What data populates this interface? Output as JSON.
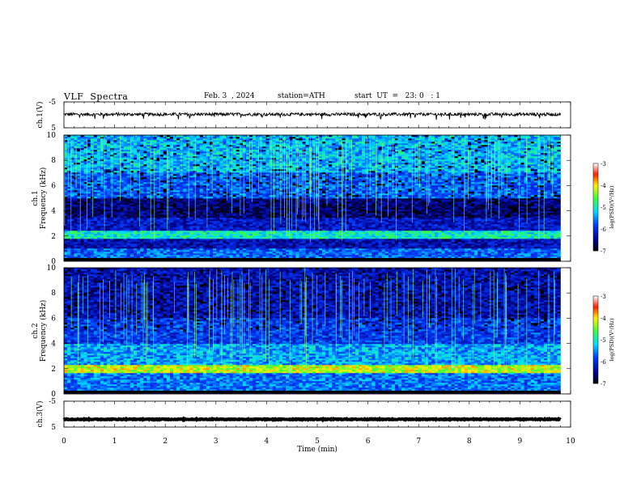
{
  "header": {
    "title": "VLF  Spectra",
    "date": "Feb. 3  , 2024",
    "station": "station=ATH",
    "start": "start  UT  =   23: 0   : 1"
  },
  "chart_data": [
    {
      "type": "line",
      "ylabel": "ch.1(V)",
      "ylim": [
        -5,
        5
      ],
      "yticks": [
        "5",
        "-5"
      ],
      "xlim": [
        0,
        10
      ],
      "series": [
        {
          "baseline": 0.2,
          "noise": 0.6,
          "end": 9.8
        }
      ]
    },
    {
      "type": "heatmap",
      "ylabel": "ch.1\nFrequency  (kHz)",
      "ylim": [
        0,
        10
      ],
      "yticks": [
        "0",
        "2",
        "4",
        "6",
        "8",
        "10"
      ],
      "xlim": [
        0,
        10
      ],
      "colorbar": {
        "label": "log(PSD)(V²/Hz)",
        "range": [
          -7,
          -3
        ],
        "ticks": [
          "-3",
          "-4",
          "-5",
          "-6",
          "-7"
        ]
      },
      "bands": [
        {
          "from": 0,
          "to": 0.3,
          "level": -7
        },
        {
          "from": 0.3,
          "to": 1.0,
          "level": -5.7
        },
        {
          "from": 1.0,
          "to": 1.8,
          "level": -6.3
        },
        {
          "from": 1.8,
          "to": 2.5,
          "level": -5.0
        },
        {
          "from": 2.5,
          "to": 3.5,
          "level": -6.2
        },
        {
          "from": 3.5,
          "to": 5.0,
          "level": -6.6
        },
        {
          "from": 5.0,
          "to": 7.0,
          "level": -5.7
        },
        {
          "from": 7.0,
          "to": 10.0,
          "level": -5.3
        }
      ]
    },
    {
      "type": "heatmap",
      "ylabel": "ch.2\nFrequency  (kHz)",
      "ylim": [
        0,
        10
      ],
      "yticks": [
        "0",
        "2",
        "4",
        "6",
        "8",
        "10"
      ],
      "xlim": [
        0,
        10
      ],
      "colorbar": {
        "label": "log(PSD)(V²/Hz)",
        "range": [
          -7,
          -3
        ],
        "ticks": [
          "-3",
          "-4",
          "-5",
          "-6",
          "-7"
        ]
      },
      "bands": [
        {
          "from": 0,
          "to": 0.3,
          "level": -6.9
        },
        {
          "from": 0.3,
          "to": 1.7,
          "level": -5.6
        },
        {
          "from": 1.7,
          "to": 2.3,
          "level": -4.2
        },
        {
          "from": 2.3,
          "to": 4.0,
          "level": -5.4
        },
        {
          "from": 4.0,
          "to": 6.0,
          "level": -5.9
        },
        {
          "from": 6.0,
          "to": 10.0,
          "level": -6.3
        }
      ]
    },
    {
      "type": "line",
      "ylabel": "ch.3(V)",
      "ylim": [
        -5,
        5
      ],
      "yticks": [
        "5",
        "-5"
      ],
      "xlim": [
        0,
        10
      ],
      "xlabel": "Time  (min)",
      "xticks": [
        "0",
        "1",
        "2",
        "3",
        "4",
        "5",
        "6",
        "7",
        "8",
        "9",
        "10"
      ],
      "series": [
        {
          "baseline": -2.0,
          "noise": 0.15,
          "end": 9.8
        }
      ]
    }
  ]
}
